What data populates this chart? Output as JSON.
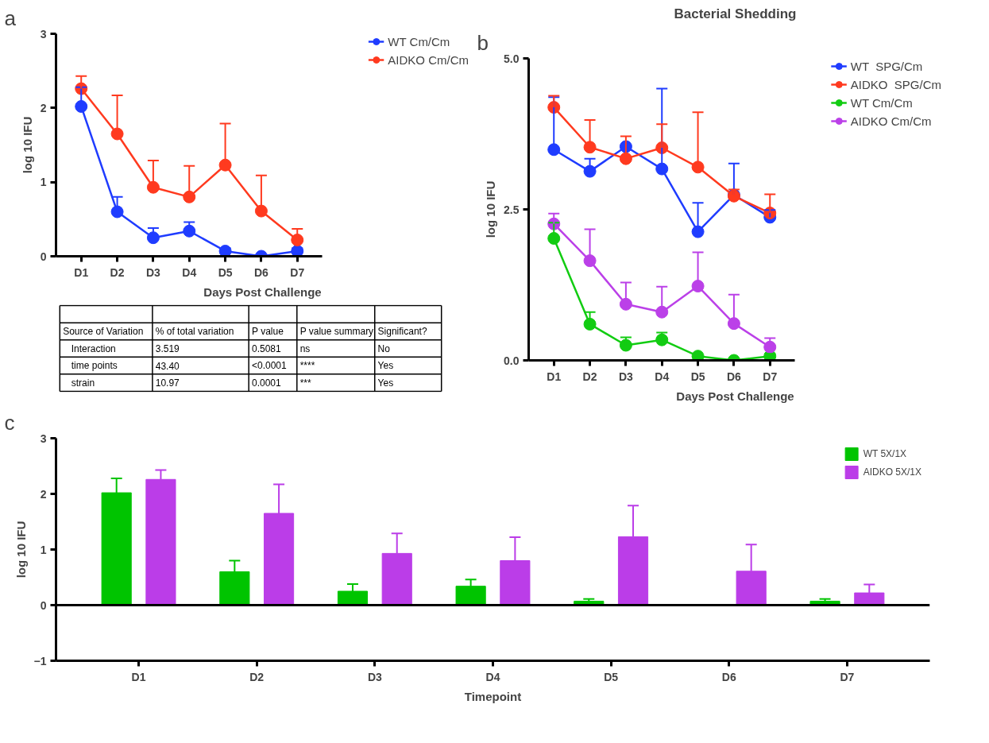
{
  "chart_data": [
    {
      "type": "line",
      "xlabel": "Days Post Challenge",
      "ylabel": "log 10 IFU",
      "categories": [
        "D1",
        "D2",
        "D3",
        "D4",
        "D5",
        "D6",
        "D7"
      ],
      "ylim": [
        0,
        3
      ],
      "yticks": [
        0,
        1,
        2,
        3
      ],
      "marker": "circle",
      "legend": "right",
      "annotations": [
        "a"
      ],
      "series": [
        {
          "name": "WT Cm/Cm",
          "color": "#1f3cff",
          "values": [
            2.02,
            0.6,
            0.25,
            0.34,
            0.07,
            0.0,
            0.07
          ],
          "errors": [
            [
              2.02,
              2.28
            ],
            [
              0.6,
              0.8
            ],
            [
              0.25,
              0.38
            ],
            [
              0.34,
              0.46
            ],
            [
              0.07,
              0.11
            ],
            null,
            [
              0.07,
              0.11
            ]
          ]
        },
        {
          "name": "AIDKO Cm/Cm",
          "color": "#ff3a1f",
          "values": [
            2.26,
            1.65,
            0.93,
            0.8,
            1.23,
            0.61,
            0.22
          ],
          "errors": [
            [
              2.26,
              2.43
            ],
            [
              1.65,
              2.17
            ],
            [
              0.93,
              1.29
            ],
            [
              0.8,
              1.22
            ],
            [
              1.23,
              1.79
            ],
            [
              0.61,
              1.09
            ],
            [
              0.22,
              0.37
            ]
          ]
        }
      ]
    },
    {
      "type": "line",
      "title": "Bacterial Shedding",
      "xlabel": "Days Post Challenge",
      "ylabel": "log 10 IFU",
      "categories": [
        "D1",
        "D2",
        "D3",
        "D4",
        "D5",
        "D6",
        "D7"
      ],
      "ylim": [
        0,
        5
      ],
      "yticks": [
        {
          "value": 0,
          "label": "0.0"
        },
        {
          "value": 2.5,
          "label": "2.5"
        },
        {
          "value": 5,
          "label": "5.0"
        }
      ],
      "marker": "circle",
      "legend": "right",
      "annotations": [
        "b"
      ],
      "series": [
        {
          "name": "WT  SPG/Cm",
          "color": "#1f3cff",
          "values": [
            3.49,
            3.13,
            3.54,
            3.17,
            2.13,
            2.74,
            2.37
          ],
          "errors": [
            [
              3.49,
              4.36
            ],
            [
              3.13,
              3.34
            ],
            null,
            [
              3.17,
              4.5
            ],
            [
              2.13,
              2.61
            ],
            [
              2.74,
              3.26
            ],
            [
              2.37,
              2.49
            ]
          ]
        },
        {
          "name": "AIDKO  SPG/Cm",
          "color": "#ff3a1f",
          "values": [
            4.19,
            3.53,
            3.34,
            3.52,
            3.2,
            2.72,
            2.44
          ],
          "errors": [
            [
              4.19,
              4.38
            ],
            [
              3.53,
              3.98
            ],
            [
              3.34,
              3.71
            ],
            [
              3.52,
              3.91
            ],
            [
              3.2,
              4.11
            ],
            [
              2.72,
              2.83
            ],
            [
              2.44,
              2.75
            ]
          ]
        },
        {
          "name": "WT Cm/Cm",
          "color": "#12cc12",
          "values": [
            2.02,
            0.6,
            0.25,
            0.34,
            0.07,
            0.0,
            0.07
          ],
          "errors": [
            [
              2.02,
              2.28
            ],
            [
              0.6,
              0.8
            ],
            [
              0.25,
              0.38
            ],
            [
              0.34,
              0.46
            ],
            null,
            null,
            [
              0.07,
              0.11
            ]
          ]
        },
        {
          "name": "AIDKO Cm/Cm",
          "color": "#bb40e8",
          "values": [
            2.26,
            1.65,
            0.93,
            0.8,
            1.23,
            0.61,
            0.22
          ],
          "errors": [
            [
              2.26,
              2.43
            ],
            [
              1.65,
              2.17
            ],
            [
              0.93,
              1.29
            ],
            [
              0.8,
              1.22
            ],
            [
              1.23,
              1.79
            ],
            [
              0.61,
              1.09
            ],
            [
              0.22,
              0.37
            ]
          ]
        }
      ]
    },
    {
      "type": "other",
      "categories": [
        "Source of Variation",
        "% of total variation",
        "P value",
        "P value summary",
        "Significant?"
      ],
      "annotations": [
        "Interaction",
        "3.519",
        "0.5081",
        "ns",
        "No",
        "time points",
        "43.40",
        "<0.0001",
        "****",
        "Yes",
        "strain",
        "10.97",
        "0.0001",
        "***",
        "Yes"
      ]
    },
    {
      "type": "bar",
      "xlabel": "Timepoint",
      "ylabel": "log 10 IFU",
      "categories": [
        "D1",
        "D2",
        "D3",
        "D4",
        "D5",
        "D6",
        "D7"
      ],
      "ylim": [
        -1,
        3
      ],
      "yticks": [
        -1,
        0,
        1,
        2,
        3
      ],
      "legend": "top right",
      "annotations": [
        "c"
      ],
      "series": [
        {
          "name": "WT 5X/1X",
          "color": "#00c400",
          "values": [
            2.02,
            0.6,
            0.25,
            0.34,
            0.07,
            0.0,
            0.07
          ],
          "errors": [
            [
              2.02,
              2.28
            ],
            [
              0.6,
              0.8
            ],
            [
              0.25,
              0.38
            ],
            [
              0.34,
              0.46
            ],
            [
              0.07,
              0.11
            ],
            null,
            [
              0.07,
              0.11
            ]
          ]
        },
        {
          "name": "AIDKO 5X/1X",
          "color": "#bb3de8",
          "values": [
            2.26,
            1.65,
            0.93,
            0.8,
            1.23,
            0.61,
            0.22
          ],
          "errors": [
            [
              2.26,
              2.43
            ],
            [
              1.65,
              2.17
            ],
            [
              0.93,
              1.29
            ],
            [
              0.8,
              1.22
            ],
            [
              1.23,
              1.79
            ],
            [
              0.61,
              1.09
            ],
            [
              0.22,
              0.37
            ]
          ]
        }
      ]
    }
  ]
}
